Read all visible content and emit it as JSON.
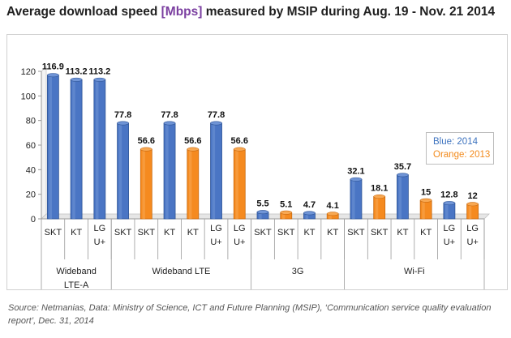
{
  "title": {
    "before": "Average download speed ",
    "unit": "[Mbps]",
    "after": " measured by MSIP during Aug. 19 - Nov. 21 2014"
  },
  "colors": {
    "blue": "#4a75c4",
    "orange": "#f58a1f",
    "blue_text": "#3d73bf",
    "orange_text": "#f28a1c"
  },
  "legend": {
    "blue": "Blue: 2014",
    "orange": "Orange: 2013"
  },
  "source": "Source: Netmanias, Data: Ministry of Science, ICT and Future Planning (MSIP), ‘Communication service quality evaluation report’, Dec. 31, 2014",
  "chart_data": {
    "type": "bar",
    "title": "Average download speed [Mbps] measured by MSIP during Aug. 19 - Nov. 21 2014",
    "ylim": [
      0,
      120
    ],
    "yticks": [
      0,
      20,
      40,
      60,
      80,
      100,
      120
    ],
    "grid": false,
    "legend_position": "right",
    "series": [
      {
        "name": "Blue: 2014",
        "color": "blue"
      },
      {
        "name": "Orange: 2013",
        "color": "orange"
      }
    ],
    "groups": [
      {
        "label": "Wideband LTE-A",
        "label_lines": [
          "Wideband",
          "LTE-A"
        ],
        "bars": [
          {
            "category": [
              "SKT"
            ],
            "value": 116.9,
            "series": "blue"
          },
          {
            "category": [
              "KT"
            ],
            "value": 113.2,
            "series": "blue"
          },
          {
            "category": [
              "LG",
              "U+"
            ],
            "value": 113.2,
            "series": "blue"
          }
        ]
      },
      {
        "label": "Wideband LTE",
        "label_lines": [
          "Wideband LTE"
        ],
        "bars": [
          {
            "category": [
              "SKT"
            ],
            "value": 77.8,
            "series": "blue"
          },
          {
            "category": [
              "SKT"
            ],
            "value": 56.6,
            "series": "orange"
          },
          {
            "category": [
              "KT"
            ],
            "value": 77.8,
            "series": "blue"
          },
          {
            "category": [
              "KT"
            ],
            "value": 56.6,
            "series": "orange"
          },
          {
            "category": [
              "LG",
              "U+"
            ],
            "value": 77.8,
            "series": "blue"
          },
          {
            "category": [
              "LG",
              "U+"
            ],
            "value": 56.6,
            "series": "orange"
          }
        ]
      },
      {
        "label": "3G",
        "label_lines": [
          "3G"
        ],
        "bars": [
          {
            "category": [
              "SKT"
            ],
            "value": 5.5,
            "series": "blue"
          },
          {
            "category": [
              "SKT"
            ],
            "value": 5.1,
            "series": "orange"
          },
          {
            "category": [
              "KT"
            ],
            "value": 4.7,
            "series": "blue"
          },
          {
            "category": [
              "KT"
            ],
            "value": 4.1,
            "series": "orange"
          }
        ]
      },
      {
        "label": "Wi-Fi",
        "label_lines": [
          "Wi-Fi"
        ],
        "bars": [
          {
            "category": [
              "SKT"
            ],
            "value": 32.1,
            "series": "blue"
          },
          {
            "category": [
              "SKT"
            ],
            "value": 18.1,
            "series": "orange"
          },
          {
            "category": [
              "KT"
            ],
            "value": 35.7,
            "series": "blue"
          },
          {
            "category": [
              "KT"
            ],
            "value": 15,
            "series": "orange"
          },
          {
            "category": [
              "LG",
              "U+"
            ],
            "value": 12.8,
            "series": "blue"
          },
          {
            "category": [
              "LG",
              "U+"
            ],
            "value": 12,
            "series": "orange"
          }
        ]
      }
    ]
  }
}
